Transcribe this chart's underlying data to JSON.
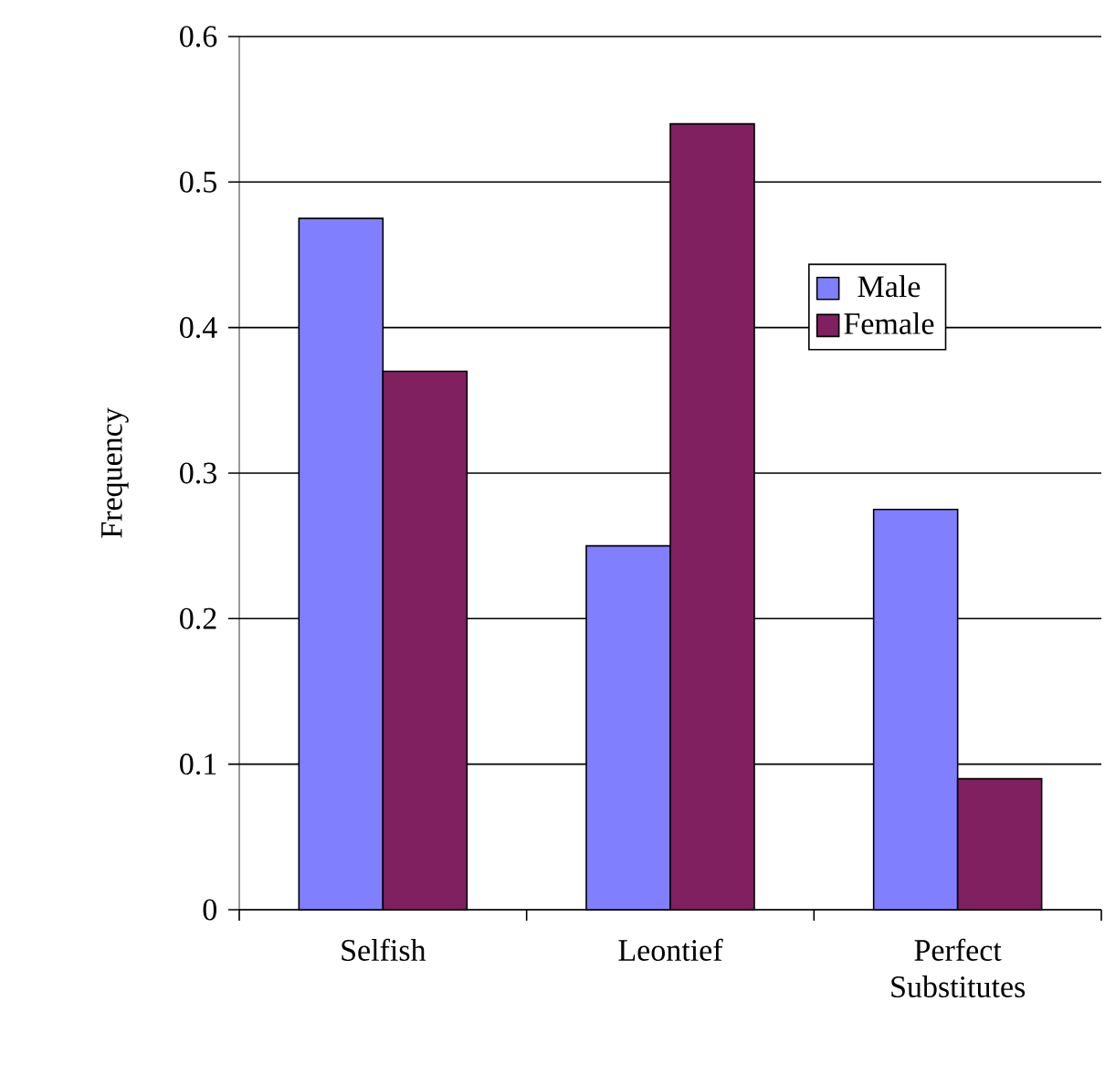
{
  "chart_data": {
    "type": "bar",
    "ylabel": "Frequency",
    "categories": [
      "Selfish",
      "Leontief",
      "Perfect Substitutes"
    ],
    "series": [
      {
        "name": "Male",
        "color": "#8080ff",
        "values": [
          0.475,
          0.25,
          0.275
        ]
      },
      {
        "name": "Female",
        "color": "#802060",
        "values": [
          0.37,
          0.54,
          0.09
        ]
      }
    ],
    "ylim": [
      0,
      0.6
    ],
    "yticks": [
      0,
      0.1,
      0.2,
      0.3,
      0.4,
      0.5,
      0.6
    ],
    "grid": "y",
    "legend": "top right"
  }
}
